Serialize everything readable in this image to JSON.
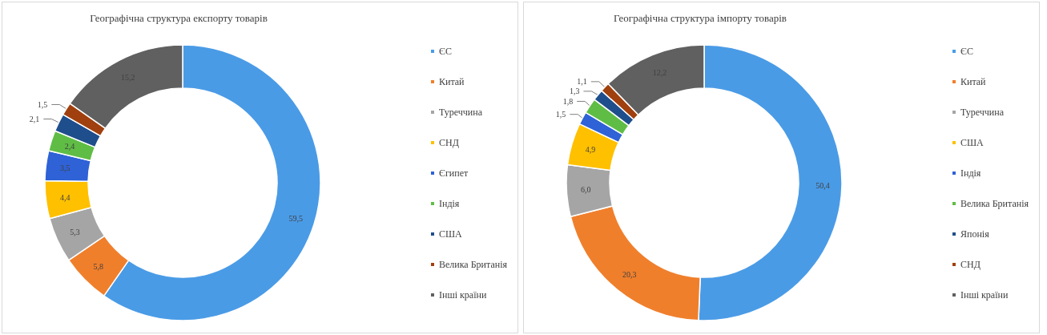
{
  "chart_data": [
    {
      "type": "donut",
      "title": "Географічна структура експорту товарів",
      "categories": [
        "ЄС",
        "Китай",
        "Туреччина",
        "СНД",
        "Єгипет",
        "Індія",
        "США",
        "Велика Британія",
        "Інші країни"
      ],
      "values": [
        59.5,
        5.8,
        5.3,
        4.4,
        3.5,
        2.4,
        2.1,
        1.5,
        15.2
      ],
      "value_labels": [
        "59,5",
        "5,8",
        "5,3",
        "4,4",
        "3,5",
        "2,4",
        "2,1",
        "1,5",
        "15,2"
      ],
      "colors": [
        "#4a9be6",
        "#f07f2c",
        "#a5a5a5",
        "#ffc000",
        "#2e62d6",
        "#5fbd45",
        "#1f4e8c",
        "#a0400e",
        "#606060"
      ],
      "legend": "right"
    },
    {
      "type": "donut",
      "title": "Географічна структура імпорту товарів",
      "categories": [
        "ЄС",
        "Китай",
        "Туреччина",
        "США",
        "Індія",
        "Велика Британія",
        "Японія",
        "СНД",
        "Інші країни"
      ],
      "values": [
        50.4,
        20.3,
        6.0,
        4.9,
        1.5,
        1.8,
        1.3,
        1.1,
        12.2
      ],
      "value_labels": [
        "50,4",
        "20,3",
        "6,0",
        "4,9",
        "1,5",
        "1,8",
        "1,3",
        "1,1",
        "12,2"
      ],
      "colors": [
        "#4a9be6",
        "#f07f2c",
        "#a5a5a5",
        "#ffc000",
        "#2e62d6",
        "#5fbd45",
        "#1f4e8c",
        "#a0400e",
        "#606060"
      ],
      "legend": "right"
    }
  ]
}
